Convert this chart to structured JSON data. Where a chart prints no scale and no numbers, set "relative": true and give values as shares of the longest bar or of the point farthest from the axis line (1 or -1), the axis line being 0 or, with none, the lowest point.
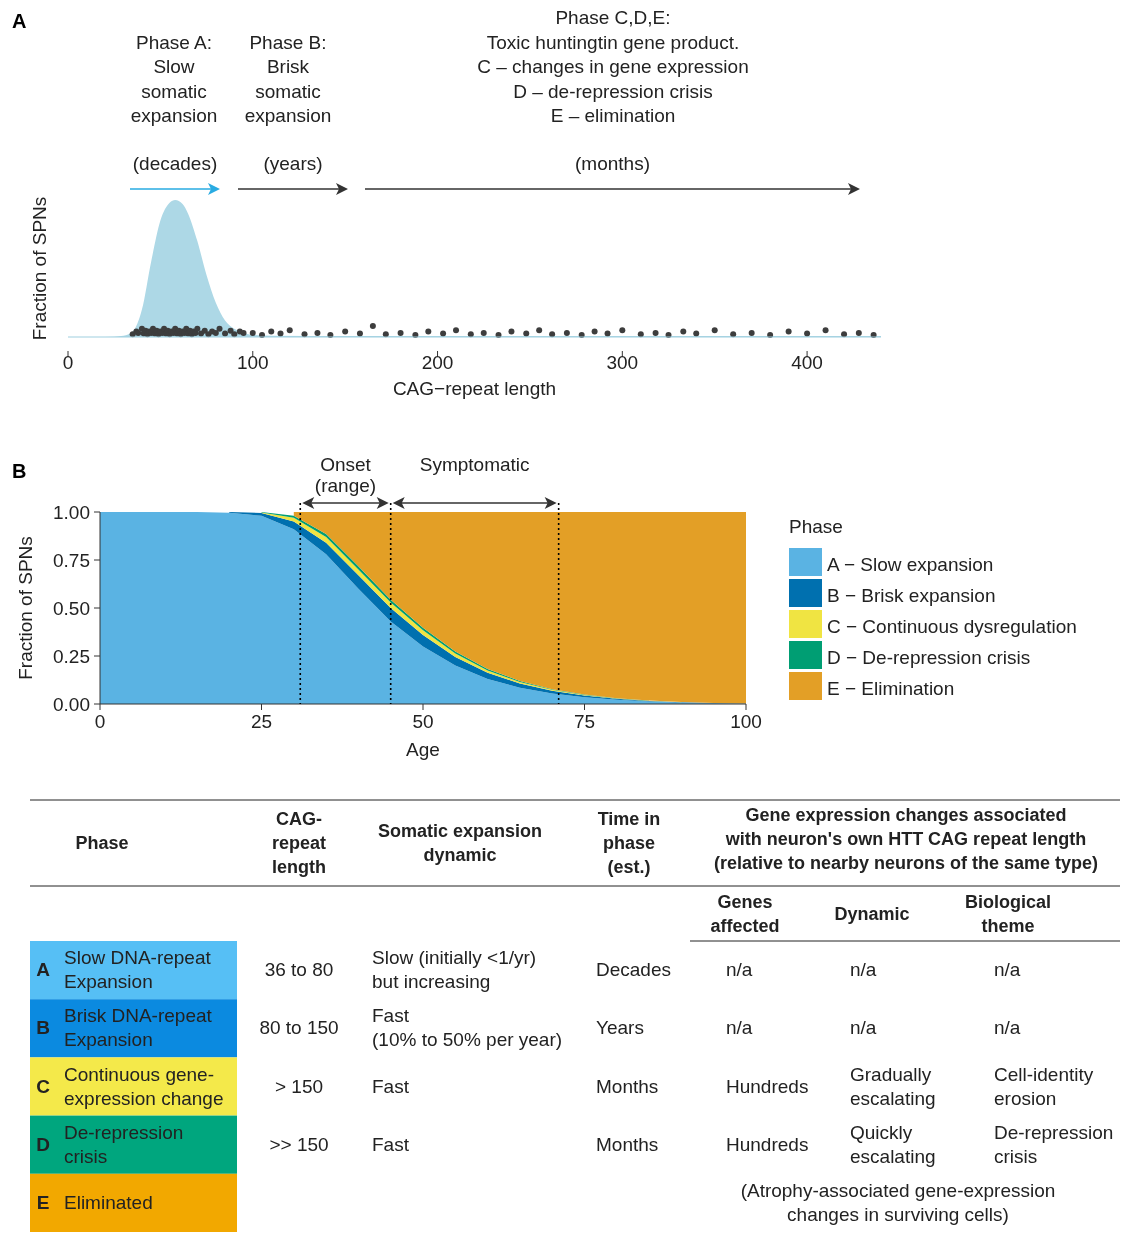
{
  "chart_data": [
    {
      "type": "area",
      "title": "A",
      "xlabel": "CAG−repeat length",
      "ylabel": "Fraction of SPNs",
      "relative": true,
      "xlim": [
        0,
        440
      ],
      "xticks": [
        0,
        100,
        200,
        300,
        400
      ],
      "tick_labels": "x",
      "annotations": [
        "Phase A:\nSlow\nsomatic\nexpansion",
        "Phase B:\nBrisk\nsomatic\nexpansion",
        "Phase C,D,E:\nToxic huntingtin gene product.\nC – changes in gene expression\nD – de-repression crisis\nE – elimination",
        "(decades)",
        "(years)",
        "(months)"
      ],
      "series": [
        {
          "type": "area",
          "color": "#add8e6",
          "x": [
            0,
            20,
            30,
            35,
            40,
            45,
            50,
            55,
            58,
            62,
            65,
            70,
            75,
            80,
            85,
            90,
            95,
            100,
            110,
            150,
            200,
            300,
            440
          ],
          "values": [
            0,
            0,
            0.01,
            0.04,
            0.2,
            0.55,
            0.85,
            0.98,
            1,
            0.97,
            0.9,
            0.7,
            0.45,
            0.25,
            0.12,
            0.06,
            0.03,
            0.015,
            0.01,
            0.008,
            0.007,
            0.007,
            0.007
          ]
        },
        {
          "type": "scatter",
          "color": "#3d3d3d",
          "marker": "circle",
          "x": [
            35,
            37,
            38,
            40,
            41,
            42,
            43,
            44,
            45,
            46,
            47,
            48,
            49,
            50,
            51,
            52,
            53,
            54,
            55,
            56,
            57,
            58,
            59,
            60,
            61,
            62,
            63,
            64,
            65,
            66,
            67,
            68,
            69,
            70,
            72,
            74,
            76,
            78,
            80,
            82,
            85,
            88,
            90,
            93,
            95,
            100,
            105,
            110,
            115,
            120,
            128,
            135,
            142,
            150,
            158,
            165,
            172,
            180,
            188,
            195,
            203,
            210,
            218,
            225,
            233,
            240,
            248,
            255,
            262,
            270,
            278,
            285,
            292,
            300,
            310,
            318,
            325,
            333,
            340,
            350,
            360,
            370,
            380,
            390,
            400,
            410,
            420,
            428,
            436
          ],
          "values": [
            0.02,
            0.04,
            0.03,
            0.06,
            0.025,
            0.045,
            0.02,
            0.04,
            0.03,
            0.06,
            0.025,
            0.045,
            0.02,
            0.04,
            0.03,
            0.06,
            0.025,
            0.045,
            0.02,
            0.04,
            0.03,
            0.06,
            0.025,
            0.045,
            0.02,
            0.04,
            0.03,
            0.06,
            0.025,
            0.045,
            0.02,
            0.04,
            0.03,
            0.06,
            0.025,
            0.045,
            0.02,
            0.04,
            0.03,
            0.06,
            0.025,
            0.045,
            0.02,
            0.04,
            0.03,
            0.03,
            0.015,
            0.04,
            0.025,
            0.05,
            0.02,
            0.03,
            0.015,
            0.04,
            0.025,
            0.08,
            0.02,
            0.03,
            0.015,
            0.04,
            0.025,
            0.05,
            0.02,
            0.03,
            0.015,
            0.04,
            0.025,
            0.05,
            0.02,
            0.03,
            0.015,
            0.04,
            0.025,
            0.05,
            0.02,
            0.03,
            0.015,
            0.04,
            0.025,
            0.05,
            0.02,
            0.03,
            0.015,
            0.04,
            0.025,
            0.05,
            0.02,
            0.03,
            0.015
          ]
        }
      ]
    },
    {
      "type": "area",
      "title": "B",
      "stacked": true,
      "xlabel": "Age",
      "ylabel": "Fraction of SPNs",
      "legend": "right",
      "legend_title": "Phase",
      "xlim": [
        0,
        100
      ],
      "ylim": [
        0,
        1
      ],
      "xticks": [
        0,
        25,
        50,
        75,
        100
      ],
      "yticks": [
        {
          "value": 0,
          "label": "0.00"
        },
        {
          "value": 0.25,
          "label": "0.25"
        },
        {
          "value": 0.5,
          "label": "0.50"
        },
        {
          "value": 0.75,
          "label": "0.75"
        },
        {
          "value": 1,
          "label": "1.00"
        }
      ],
      "x": [
        0,
        5,
        10,
        15,
        20,
        25,
        30,
        35,
        40,
        45,
        50,
        55,
        60,
        65,
        70,
        75,
        80,
        85,
        90,
        95,
        100
      ],
      "ref_lines": [
        {
          "axis": "x",
          "value": 31,
          "line_style": "dotted",
          "color": "#000000"
        },
        {
          "axis": "x",
          "value": 45,
          "line_style": "dotted",
          "color": "#000000"
        },
        {
          "axis": "x",
          "value": 71,
          "line_style": "dotted",
          "color": "#000000"
        }
      ],
      "annotations": [
        "Onset\n(range)",
        "Symptomatic"
      ],
      "series": [
        {
          "name": "A − Slow expansion",
          "color": "#5ab3e3",
          "values": [
            1,
            1,
            1,
            1,
            0.996,
            0.98,
            0.91,
            0.78,
            0.6,
            0.43,
            0.3,
            0.2,
            0.13,
            0.085,
            0.055,
            0.035,
            0.022,
            0.013,
            0.007,
            0.004,
            0.002
          ]
        },
        {
          "name": "B − Brisk expansion",
          "color": "#0070af",
          "values": [
            null,
            null,
            null,
            null,
            0.004,
            0.015,
            0.04,
            0.06,
            0.07,
            0.07,
            0.06,
            0.045,
            0.033,
            0.022,
            0.014,
            0.009,
            0.005,
            0.003,
            0.002,
            0.001,
            0.001
          ]
        },
        {
          "name": "C − Continuous dysregulation",
          "color": "#f0e442",
          "values": [
            null,
            null,
            null,
            null,
            null,
            0.003,
            0.02,
            0.03,
            0.03,
            0.028,
            0.024,
            0.018,
            0.012,
            0.008,
            0.005,
            0.003,
            0.002,
            0.001,
            0.001,
            null,
            null
          ]
        },
        {
          "name": "D − De-repression crisis",
          "color": "#009e73",
          "values": [
            null,
            null,
            null,
            null,
            null,
            0.002,
            0.01,
            0.015,
            0.017,
            0.015,
            0.013,
            0.01,
            0.007,
            0.005,
            0.003,
            0.002,
            0.001,
            0.001,
            null,
            null,
            null
          ]
        },
        {
          "name": "E − Elimination",
          "color": "#e39f26",
          "values": [
            null,
            null,
            null,
            null,
            null,
            null,
            0.02,
            0.115,
            0.283,
            0.457,
            0.603,
            0.727,
            0.818,
            0.88,
            0.923,
            0.951,
            0.97,
            0.982,
            0.99,
            0.995,
            0.997
          ]
        }
      ]
    },
    {
      "type": "other",
      "colors": [
        "#56bff5",
        "#0b8ae0",
        "#f4e94a",
        "#00a67e",
        "#f2a800"
      ],
      "annotations": [
        "Phase",
        "CAG-\nrepeat\nlength",
        "Somatic expansion\ndynamic",
        "Time in\nphase\n(est.)",
        "Gene expression changes associated\nwith neuron's own HTT CAG repeat length\n(relative to nearby neurons of the same type)",
        "Genes\naffected",
        "Dynamic",
        "Biological\ntheme",
        "A",
        "Slow DNA-repeat\nExpansion",
        "36 to 80",
        "Slow (initially <1/yr)\nbut increasing",
        "Decades",
        "n/a",
        "n/a",
        "n/a",
        "B",
        "Brisk DNA-repeat\nExpansion",
        "80 to 150",
        "Fast\n(10% to 50% per year)",
        "Years",
        "n/a",
        "n/a",
        "n/a",
        "C",
        "Continuous gene-\nexpression change",
        "> 150",
        "Fast",
        "Months",
        "Hundreds",
        "Gradually\nescalating",
        "Cell-identity\nerosion",
        "D",
        "De-repression\ncrisis",
        ">> 150",
        "Fast",
        "Months",
        "Hundreds",
        "Quickly\nescalating",
        "De-repression\ncrisis",
        "E",
        "Eliminated",
        "(Atrophy-associated gene-expression\nchanges in surviving cells)"
      ]
    }
  ]
}
